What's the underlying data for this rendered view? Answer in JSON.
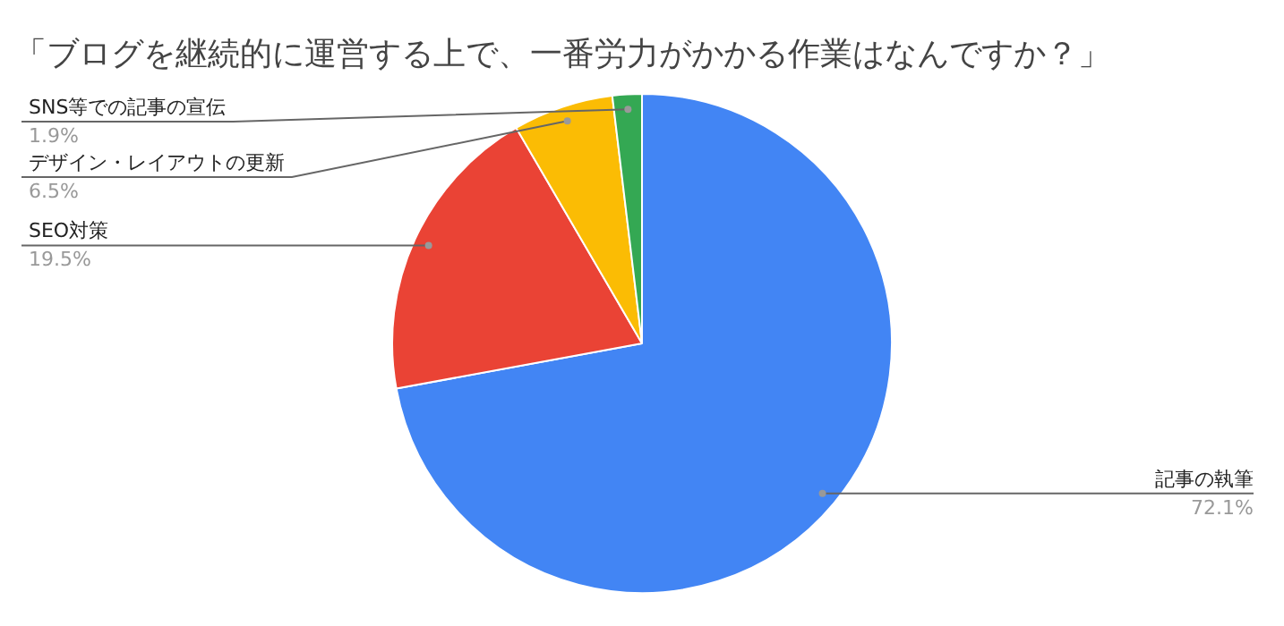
{
  "chart_data": {
    "type": "pie",
    "title": "「ブログを継続的に運営する上で、一番労力がかかる作業はなんですか？」",
    "categories": [
      "記事の執筆",
      "SEO対策",
      "デザイン・レイアウトの更新",
      "SNS等での記事の宣伝"
    ],
    "values": [
      72.1,
      19.5,
      6.5,
      1.9
    ],
    "colors": [
      "#4285f4",
      "#ea4335",
      "#fbbc04",
      "#34a853"
    ],
    "value_labels": [
      "72.1%",
      "19.5%",
      "6.5%",
      "1.9%"
    ],
    "legend": false
  }
}
